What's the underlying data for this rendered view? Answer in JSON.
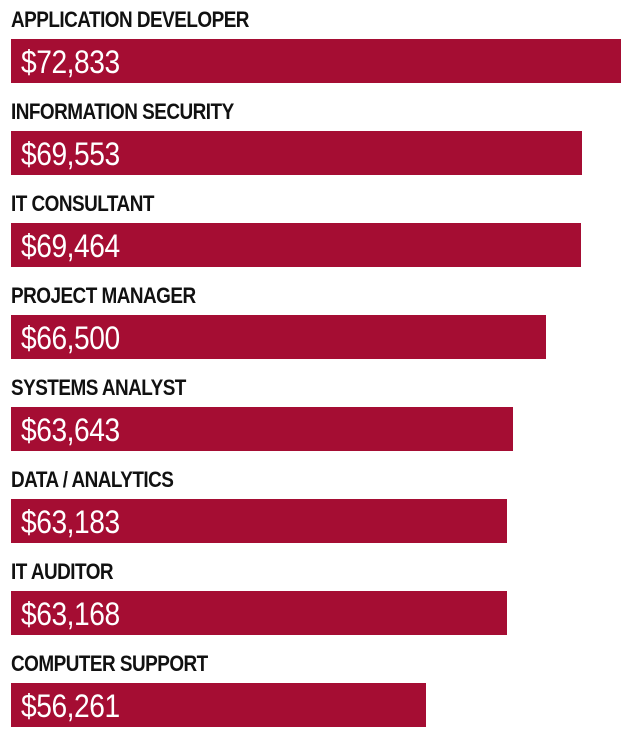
{
  "chart_data": {
    "type": "bar",
    "orientation": "horizontal",
    "categories": [
      "APPLICATION DEVELOPER",
      "INFORMATION SECURITY",
      "IT CONSULTANT",
      "PROJECT MANAGER",
      "SYSTEMS ANALYST",
      "DATA / ANALYTICS",
      "IT AUDITOR",
      "COMPUTER SUPPORT"
    ],
    "values": [
      72833,
      69553,
      69464,
      66500,
      63643,
      63183,
      63168,
      56261
    ],
    "value_labels": [
      "$72,833",
      "$69,553",
      "$69,464",
      "$66,500",
      "$63,643",
      "$63,183",
      "$63,168",
      "$56,261"
    ],
    "xlim": [
      21000,
      72833
    ],
    "bar_color": "#a50d33",
    "value_label_color": "#ffffff",
    "grid": false,
    "legend": "none"
  }
}
